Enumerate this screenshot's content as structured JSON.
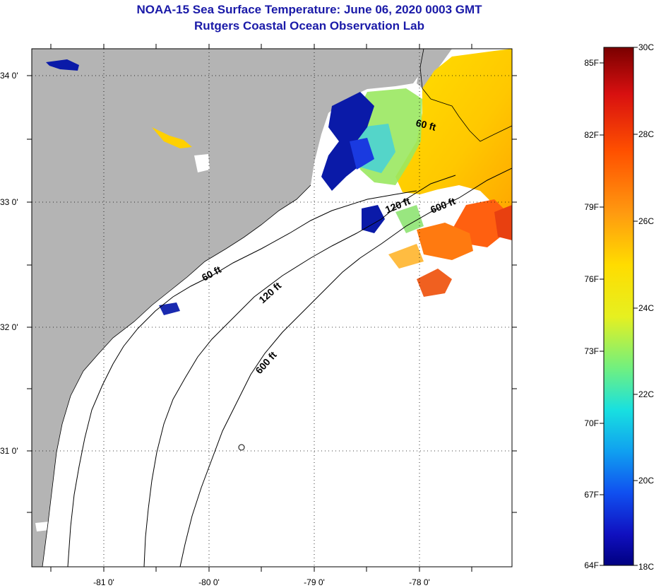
{
  "header": {
    "title": "NOAA-15 Sea Surface Temperature:  June 06, 2020 0003 GMT",
    "subtitle": "Rutgers Coastal Ocean Observation Lab"
  },
  "map": {
    "lat_labels": [
      "34 0'",
      "33 0'",
      "32 0'",
      "31 0'"
    ],
    "lon_labels": [
      "-81 0'",
      "-80 0'",
      "-79 0'",
      "-78 0'"
    ],
    "contour_labels": [
      "60 ft",
      "120 ft",
      "600 ft",
      "60 ft",
      "120 ft",
      "600 ft"
    ],
    "colors": {
      "land": "#b4b4b4",
      "water_nodata": "#ffffff",
      "contour": "#000000"
    }
  },
  "colorbar": {
    "fahrenheit_labels": [
      "85F",
      "82F",
      "79F",
      "76F",
      "73F",
      "70F",
      "67F",
      "64F"
    ],
    "celsius_labels": [
      "30C",
      "28C",
      "26C",
      "24C",
      "22C",
      "20C",
      "18C"
    ],
    "gradient_stops": [
      "#7a0000",
      "#d81010",
      "#ff5000",
      "#ff9a10",
      "#ffdc00",
      "#e6f020",
      "#70f080",
      "#18e0e0",
      "#10a0f0",
      "#1050f0",
      "#1010c0",
      "#000080"
    ]
  }
}
